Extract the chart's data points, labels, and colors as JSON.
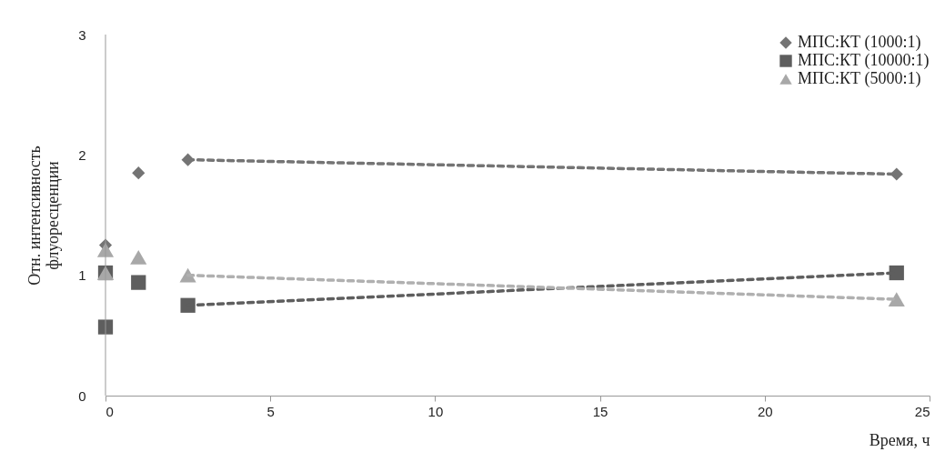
{
  "chart_data": {
    "type": "scatter",
    "xlabel": "Время, ч",
    "ylabel": "Отн. интенсивность\nфлуоресценции",
    "xlim": [
      0,
      25
    ],
    "ylim": [
      0,
      3
    ],
    "xticks": [
      0,
      5,
      10,
      15,
      20,
      25
    ],
    "yticks": [
      0,
      1,
      2,
      3
    ],
    "grid": false,
    "legend": "top right",
    "series": [
      {
        "name": "МПС:КТ (1000:1)",
        "color": "#747474",
        "marker": "diamond",
        "x": [
          0,
          1,
          2.5,
          24
        ],
        "values": [
          1.25,
          1.85,
          1.96,
          1.84
        ]
      },
      {
        "name": "МПС:КТ (10000:1)",
        "color": "#5e5e5e",
        "marker": "square",
        "x": [
          0,
          0,
          1,
          2.5,
          24
        ],
        "values": [
          1.02,
          0.57,
          0.94,
          0.75,
          1.02
        ]
      },
      {
        "name": "МПС:КТ (5000:1)",
        "color": "#a8a8a8",
        "marker": "triangle",
        "x": [
          0,
          0,
          1,
          2.5,
          24
        ],
        "values": [
          1.21,
          1.02,
          1.15,
          1.0,
          0.8
        ]
      },
      {
        "type": "line",
        "color": "#747474",
        "line_style": "dashed",
        "marker": "none",
        "x": [
          2.5,
          24
        ],
        "values": [
          1.96,
          1.84
        ]
      },
      {
        "type": "line",
        "color": "#5e5e5e",
        "line_style": "dashed",
        "marker": "none",
        "x": [
          2.5,
          24
        ],
        "values": [
          0.75,
          1.02
        ]
      },
      {
        "type": "line",
        "color": "#b0b0b0",
        "line_style": "dashed",
        "marker": "none",
        "x": [
          2.5,
          24
        ],
        "values": [
          1.0,
          0.8
        ]
      }
    ]
  }
}
